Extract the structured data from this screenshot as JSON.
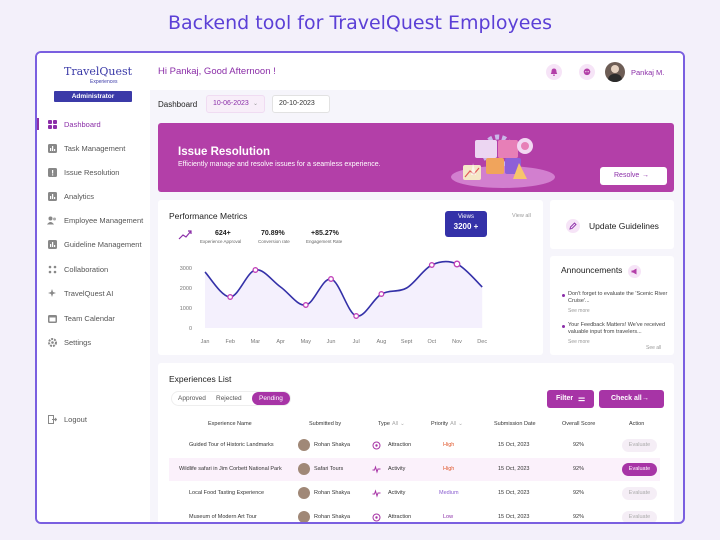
{
  "hero_title": "Backend tool for TravelQuest Employees",
  "colors": {
    "accent": "#8b2ea8",
    "banner": "#b33fa8",
    "navy": "#3b3aa8",
    "frame": "#7a5fe0"
  },
  "sidebar": {
    "logo_main": "TravelQuest",
    "logo_sub": "Experiences",
    "role_badge": "Administrator",
    "items": [
      {
        "label": "Dashboard",
        "icon": "grid-icon",
        "active": true
      },
      {
        "label": "Task Management",
        "icon": "bar-chart-icon"
      },
      {
        "label": "Issue Resolution",
        "icon": "warning-icon"
      },
      {
        "label": "Analytics",
        "icon": "bar-chart-icon"
      },
      {
        "label": "Employee Management",
        "icon": "users-icon"
      },
      {
        "label": "Guideline Management",
        "icon": "bar-chart-icon"
      },
      {
        "label": "Collaboration",
        "icon": "collab-icon"
      },
      {
        "label": "TravelQuest AI",
        "icon": "sparkle-icon"
      },
      {
        "label": "Team Calendar",
        "icon": "calendar-icon"
      },
      {
        "label": "Settings",
        "icon": "gear-icon"
      }
    ],
    "logout": "Logout"
  },
  "header": {
    "greeting": "Hi Pankaj, Good Afternoon !",
    "user_name": "Pankaj M."
  },
  "toolbar": {
    "dashboard_label": "Dashboard",
    "date_from": "10-06-2023",
    "date_to": "20-10-2023"
  },
  "banner": {
    "title": "Issue Resolution",
    "subtitle": "Efficiently manage and resolve issues for a seamless experience.",
    "button": "Resolve"
  },
  "performance": {
    "title": "Performance Metrics",
    "view_all": "View all",
    "metrics": [
      {
        "value": "624+",
        "label": "Experience Approval"
      },
      {
        "value": "70.89%",
        "label": "Conversion rate"
      },
      {
        "value": "+85.27%",
        "label": "Engagement Rate"
      }
    ],
    "tooltip_label": "Views",
    "tooltip_value": "3200 +"
  },
  "chart_data": {
    "type": "line",
    "categories": [
      "Jan",
      "Feb",
      "Mar",
      "Apr",
      "May",
      "Jun",
      "Jul",
      "Aug",
      "Sept",
      "Oct",
      "Nov",
      "Dec"
    ],
    "values": [
      2800,
      1550,
      2900,
      2050,
      1150,
      2450,
      600,
      1700,
      2000,
      3150,
      3200,
      2050
    ],
    "marker_indices": [
      1,
      2,
      4,
      5,
      6,
      7,
      9
    ],
    "y_ticks": [
      "3000",
      "2000",
      "1000",
      "0"
    ],
    "ylim": [
      0,
      3500
    ],
    "xlabel": "",
    "ylabel": ""
  },
  "guidelines": {
    "label": "Update Guidelines"
  },
  "announcements": {
    "title": "Announcements",
    "items": [
      {
        "text": "Don't forget to evaluate the 'Scenic River Cruise'...",
        "more": "See more"
      },
      {
        "text": "Your Feedback Matters! We've received valuable input from travelers...",
        "more": "See more"
      }
    ],
    "see_all": "See all"
  },
  "experiences": {
    "title": "Experiences List",
    "tabs": [
      "Approved",
      "Rejected",
      "Pending"
    ],
    "filter": "Filter",
    "check_all": "Check all",
    "headers": {
      "name": "Experience Name",
      "by": "Submitted by",
      "type": "Type",
      "type_filter": "All",
      "priority": "Priority",
      "priority_filter": "All",
      "date": "Submission Date",
      "score": "Overall Score",
      "action": "Action"
    },
    "rows": [
      {
        "name": "Guided Tour of Historic Landmarks",
        "by": "Rohan Shakya",
        "type": "Attraction",
        "priority": "High",
        "date": "15 Oct, 2023",
        "score": "92%",
        "action": "Evaluate"
      },
      {
        "name": "Wildlife safari in Jim Corbett National Park",
        "by": "Safari Tours",
        "type": "Activity",
        "priority": "High",
        "date": "15 Oct, 2023",
        "score": "92%",
        "action": "Evaluate"
      },
      {
        "name": "Local Food Tasting Experience",
        "by": "Rohan Shakya",
        "type": "Activity",
        "priority": "Medium",
        "date": "15 Oct, 2023",
        "score": "92%",
        "action": "Evaluate"
      },
      {
        "name": "Museum of Modern Art Tour",
        "by": "Rohan Shakya",
        "type": "Attraction",
        "priority": "Low",
        "date": "15 Oct, 2023",
        "score": "92%",
        "action": "Evaluate"
      }
    ]
  }
}
